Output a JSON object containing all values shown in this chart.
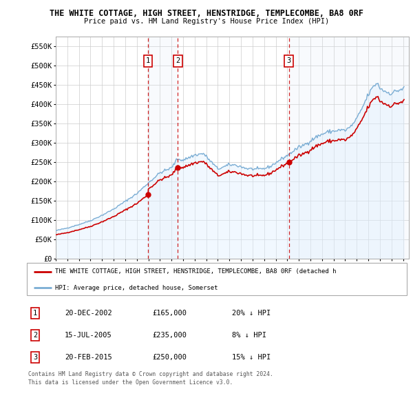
{
  "title": "THE WHITE COTTAGE, HIGH STREET, HENSTRIDGE, TEMPLECOMBE, BA8 0RF",
  "subtitle": "Price paid vs. HM Land Registry's House Price Index (HPI)",
  "ylim": [
    0,
    575000
  ],
  "yticks": [
    0,
    50000,
    100000,
    150000,
    200000,
    250000,
    300000,
    350000,
    400000,
    450000,
    500000,
    550000
  ],
  "xlim_start": 1995.0,
  "xlim_end": 2025.5,
  "sale_dates": [
    2002.97,
    2005.54,
    2015.13
  ],
  "sale_prices": [
    165000,
    235000,
    250000
  ],
  "sale_labels": [
    "1",
    "2",
    "3"
  ],
  "sale_color": "#cc0000",
  "hpi_color": "#7aadd4",
  "hpi_fill_color": "#ddeeff",
  "legend_sale": "THE WHITE COTTAGE, HIGH STREET, HENSTRIDGE, TEMPLECOMBE, BA8 0RF (detached h",
  "legend_hpi": "HPI: Average price, detached house, Somerset",
  "table_data": [
    {
      "num": "1",
      "date": "20-DEC-2002",
      "price": "£165,000",
      "hpi": "20% ↓ HPI"
    },
    {
      "num": "2",
      "date": "15-JUL-2005",
      "price": "£235,000",
      "hpi": "8% ↓ HPI"
    },
    {
      "num": "3",
      "date": "20-FEB-2015",
      "price": "£250,000",
      "hpi": "15% ↓ HPI"
    }
  ],
  "footer1": "Contains HM Land Registry data © Crown copyright and database right 2024.",
  "footer2": "This data is licensed under the Open Government Licence v3.0.",
  "background_color": "#ffffff",
  "grid_color": "#cccccc",
  "shaded_color": "#dce8f5"
}
